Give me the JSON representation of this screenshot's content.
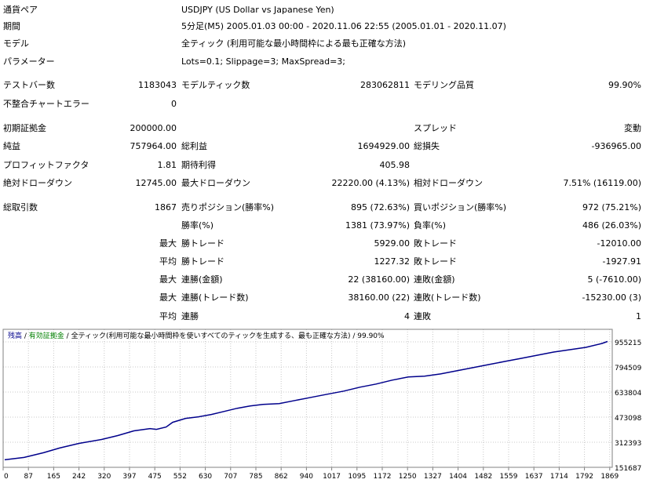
{
  "info": {
    "symbol_label": "通貨ペア",
    "symbol_value": "USDJPY (US Dollar vs Japanese Yen)",
    "period_label": "期間",
    "period_value": "5分足(M5) 2005.01.03 00:00 - 2020.11.06 22:55 (2005.01.01 - 2020.11.07)",
    "model_label": "モデル",
    "model_value": "全ティック (利用可能な最小時間枠による最も正確な方法)",
    "params_label": "パラメーター",
    "params_value": "Lots=0.1; Slippage=3; MaxSpread=3;"
  },
  "stats": {
    "bars_label": "テストバー数",
    "bars_value": "1183043",
    "ticks_label": "モデルティック数",
    "ticks_value": "283062811",
    "quality_label": "モデリング品質",
    "quality_value": "99.90%",
    "mismatch_label": "不整合チャートエラー",
    "mismatch_value": "0",
    "deposit_label": "初期証拠金",
    "deposit_value": "200000.00",
    "spread_label": "スプレッド",
    "spread_value": "変動",
    "net_label": "純益",
    "net_value": "757964.00",
    "gross_profit_label": "総利益",
    "gross_profit_value": "1694929.00",
    "gross_loss_label": "総損失",
    "gross_loss_value": "-936965.00",
    "pf_label": "プロフィットファクタ",
    "pf_value": "1.81",
    "expected_label": "期待利得",
    "expected_value": "405.98",
    "abs_dd_label": "絶対ドローダウン",
    "abs_dd_value": "12745.00",
    "max_dd_label": "最大ドローダウン",
    "max_dd_value": "22220.00 (4.13%)",
    "rel_dd_label": "相対ドローダウン",
    "rel_dd_value": "7.51% (16119.00)",
    "trades_label": "総取引数",
    "trades_value": "1867",
    "short_label": "売りポジション(勝率%)",
    "short_value": "895 (72.63%)",
    "long_label": "買いポジション(勝率%)",
    "long_value": "972 (75.21%)",
    "win_label": "勝率(%)",
    "win_value": "1381 (73.97%)",
    "loss_label": "負率(%)",
    "loss_value": "486 (26.03%)",
    "max_prefix": "最大",
    "avg_prefix": "平均",
    "largest_win_label": "勝トレード",
    "largest_win_value": "5929.00",
    "largest_loss_label": "敗トレード",
    "largest_loss_value": "-12010.00",
    "avg_win_label": "勝トレード",
    "avg_win_value": "1227.32",
    "avg_loss_label": "敗トレード",
    "avg_loss_value": "-1927.91",
    "max_consec_wins_label": "連勝(金額)",
    "max_consec_wins_value": "22 (38160.00)",
    "max_consec_losses_label": "連敗(金額)",
    "max_consec_losses_value": "5 (-7610.00)",
    "max_consec_profit_label": "連勝(トレード数)",
    "max_consec_profit_value": "38160.00 (22)",
    "max_consec_loss_label": "連敗(トレード数)",
    "max_consec_loss_value": "-15230.00 (3)",
    "avg_consec_wins_label": "連勝",
    "avg_consec_wins_value": "4",
    "avg_consec_losses_label": "連敗",
    "avg_consec_losses_value": "1"
  },
  "legend": {
    "balance": "残高",
    "sep1": " / ",
    "equity": "有効証拠金",
    "sep2": " / ",
    "desc": "全ティック(利用可能な最小時間枠を使いすべてのティックを生成する、最も正確な方法) / 99.90%",
    "balance_color": "#00008b",
    "equity_color": "#008000"
  },
  "chart_data": {
    "type": "line",
    "title": "",
    "xlabel": "",
    "ylabel": "",
    "x_ticks": [
      "0",
      "87",
      "165",
      "242",
      "320",
      "397",
      "475",
      "552",
      "630",
      "707",
      "785",
      "862",
      "940",
      "1017",
      "1095",
      "1172",
      "1250",
      "1327",
      "1404",
      "1482",
      "1559",
      "1637",
      "1714",
      "1792",
      "1869"
    ],
    "y_ticks": [
      "955215",
      "794509",
      "633804",
      "473098",
      "312393",
      "151687"
    ],
    "xlim": [
      0,
      1867
    ],
    "ylim": [
      151687,
      955215
    ],
    "grid": true,
    "line_color": "#00008b",
    "series": [
      {
        "x": [
          0,
          60,
          120,
          170,
          230,
          300,
          350,
          400,
          450,
          470,
          500,
          520,
          560,
          600,
          640,
          680,
          720,
          760,
          800,
          850,
          900,
          950,
          1000,
          1050,
          1100,
          1150,
          1200,
          1250,
          1300,
          1350,
          1400,
          1450,
          1500,
          1550,
          1600,
          1650,
          1700,
          1750,
          1800,
          1850,
          1867
        ],
        "values": [
          200000,
          215000,
          245000,
          275000,
          305000,
          330000,
          355000,
          385000,
          400000,
          395000,
          410000,
          440000,
          465000,
          475000,
          490000,
          510000,
          530000,
          545000,
          555000,
          560000,
          580000,
          600000,
          620000,
          640000,
          665000,
          685000,
          710000,
          730000,
          735000,
          750000,
          770000,
          790000,
          810000,
          830000,
          850000,
          870000,
          890000,
          905000,
          920000,
          945000,
          957964
        ]
      }
    ]
  }
}
